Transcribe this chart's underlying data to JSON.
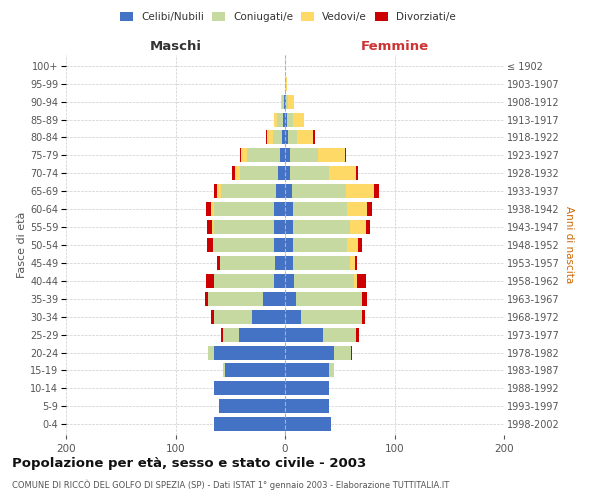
{
  "age_groups": [
    "0-4",
    "5-9",
    "10-14",
    "15-19",
    "20-24",
    "25-29",
    "30-34",
    "35-39",
    "40-44",
    "45-49",
    "50-54",
    "55-59",
    "60-64",
    "65-69",
    "70-74",
    "75-79",
    "80-84",
    "85-89",
    "90-94",
    "95-99",
    "100+"
  ],
  "birth_years": [
    "1998-2002",
    "1993-1997",
    "1988-1992",
    "1983-1987",
    "1978-1982",
    "1973-1977",
    "1968-1972",
    "1963-1967",
    "1958-1962",
    "1953-1957",
    "1948-1952",
    "1943-1947",
    "1938-1942",
    "1933-1937",
    "1928-1932",
    "1923-1927",
    "1918-1922",
    "1913-1917",
    "1908-1912",
    "1903-1907",
    "≤ 1902"
  ],
  "colors": {
    "celibi": "#4472c4",
    "coniugati": "#c5d9a0",
    "vedovi": "#ffd966",
    "divorziati": "#cc0000"
  },
  "males": {
    "celibi": [
      65,
      60,
      65,
      55,
      65,
      42,
      30,
      20,
      10,
      9,
      10,
      10,
      10,
      8,
      6,
      5,
      3,
      2,
      1,
      0,
      0
    ],
    "coniugati": [
      0,
      0,
      0,
      2,
      5,
      15,
      35,
      50,
      55,
      50,
      55,
      55,
      55,
      50,
      35,
      30,
      8,
      5,
      2,
      0,
      0
    ],
    "vedovi": [
      0,
      0,
      0,
      0,
      0,
      0,
      0,
      0,
      0,
      0,
      1,
      2,
      3,
      4,
      5,
      5,
      5,
      3,
      1,
      0,
      0
    ],
    "divorziati": [
      0,
      0,
      0,
      0,
      0,
      1,
      3,
      3,
      7,
      3,
      5,
      4,
      4,
      3,
      2,
      1,
      1,
      0,
      0,
      0,
      0
    ]
  },
  "females": {
    "nubili": [
      42,
      40,
      40,
      40,
      45,
      35,
      15,
      10,
      8,
      7,
      7,
      7,
      7,
      6,
      5,
      5,
      3,
      2,
      1,
      0,
      0
    ],
    "coniugate": [
      0,
      0,
      0,
      5,
      15,
      30,
      55,
      60,
      55,
      52,
      50,
      52,
      50,
      50,
      35,
      25,
      8,
      5,
      2,
      0,
      0
    ],
    "vedove": [
      0,
      0,
      0,
      0,
      0,
      0,
      0,
      0,
      3,
      5,
      10,
      15,
      18,
      25,
      25,
      25,
      15,
      10,
      5,
      2,
      0
    ],
    "divorziate": [
      0,
      0,
      0,
      0,
      1,
      3,
      3,
      5,
      8,
      2,
      3,
      4,
      4,
      5,
      2,
      1,
      1,
      0,
      0,
      0,
      0
    ]
  },
  "title": "Popolazione per età, sesso e stato civile - 2003",
  "subtitle": "COMUNE DI RICCÒ DEL GOLFO DI SPEZIA (SP) - Dati ISTAT 1° gennaio 2003 - Elaborazione TUTTITALIA.IT",
  "xlabel_left": "Maschi",
  "xlabel_right": "Femmine",
  "ylabel_left": "Fasce di età",
  "ylabel_right": "Anni di nascita",
  "xlim": 200,
  "legend_labels": [
    "Celibi/Nubili",
    "Coniugati/e",
    "Vedovi/e",
    "Divorziati/e"
  ],
  "background_color": "#ffffff",
  "grid_color": "#cccccc"
}
